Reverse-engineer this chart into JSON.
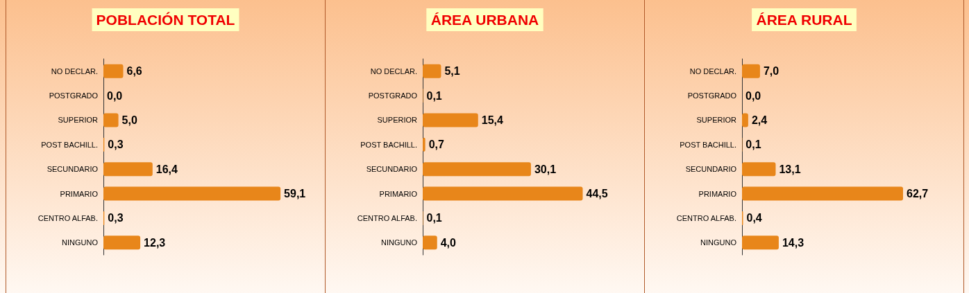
{
  "chart_data": [
    {
      "type": "bar",
      "orientation": "horizontal",
      "title": "POBLACIÓN TOTAL",
      "categories": [
        "NO DECLAR.",
        "POSTGRADO",
        "SUPERIOR",
        "POST BACHILL.",
        "SECUNDARIO",
        "PRIMARIO",
        "CENTRO ALFAB.",
        "NINGUNO"
      ],
      "values": [
        6.6,
        0.0,
        5.0,
        0.3,
        16.4,
        59.1,
        0.3,
        12.3
      ],
      "value_labels": [
        "6,6",
        "0,0",
        "5,0",
        "0,3",
        "16,4",
        "59,1",
        "0,3",
        "12,3"
      ],
      "color": "#e8861a"
    },
    {
      "type": "bar",
      "orientation": "horizontal",
      "title": "ÁREA URBANA",
      "categories": [
        "NO DECLAR.",
        "POSTGRADO",
        "SUPERIOR",
        "POST BACHILL.",
        "SECUNDARIO",
        "PRIMARIO",
        "CENTRO ALFAB.",
        "NINGUNO"
      ],
      "values": [
        5.1,
        0.1,
        15.4,
        0.7,
        30.1,
        44.5,
        0.1,
        4.0
      ],
      "value_labels": [
        "5,1",
        "0,1",
        "15,4",
        "0,7",
        "30,1",
        "44,5",
        "0,1",
        "4,0"
      ],
      "color": "#e8861a"
    },
    {
      "type": "bar",
      "orientation": "horizontal",
      "title": "ÁREA RURAL",
      "categories": [
        "NO DECLAR.",
        "POSTGRADO",
        "SUPERIOR",
        "POST BACHILL.",
        "SECUNDARIO",
        "PRIMARIO",
        "CENTRO ALFAB.",
        "NINGUNO"
      ],
      "values": [
        7.0,
        0.0,
        2.4,
        0.1,
        13.1,
        62.7,
        0.4,
        14.3
      ],
      "value_labels": [
        "7,0",
        "0,0",
        "2,4",
        "0,1",
        "13,1",
        "62,7",
        "0,4",
        "14,3"
      ],
      "color": "#e8861a"
    }
  ]
}
